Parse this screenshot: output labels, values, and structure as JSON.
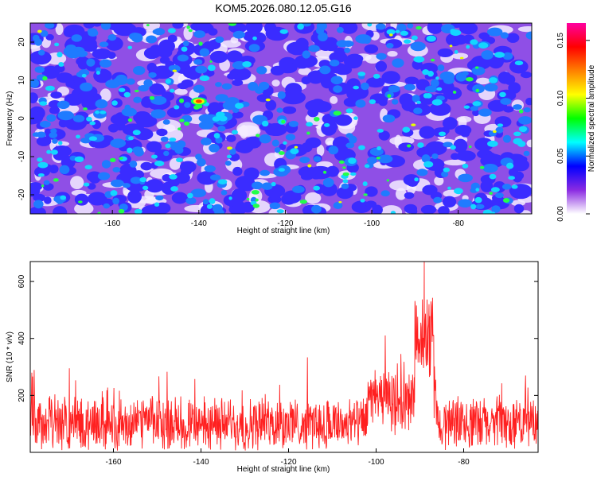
{
  "title": "KOM5.2026.080.12.05.G16",
  "chart_data": [
    {
      "type": "heatmap",
      "xlabel": "Height of straight line (km)",
      "ylabel": "Frequency (Hz)",
      "xlim": [
        -179,
        -63
      ],
      "ylim": [
        -25,
        25
      ],
      "xticks": [
        -160,
        -140,
        -120,
        -100,
        -80
      ],
      "xtick_labels": [
        "-160",
        "-140",
        "-120",
        "-100",
        "-80"
      ],
      "yticks": [
        -20,
        -10,
        0,
        10,
        20
      ],
      "ytick_labels": [
        "-20",
        "-10",
        "0",
        "10",
        "20"
      ],
      "colorbar": {
        "label": "Normalized spectral amplitude",
        "range": [
          0.0,
          0.165
        ],
        "ticks": [
          0.0,
          0.05,
          0.1,
          0.15
        ],
        "tick_labels": [
          "0.00",
          "0.05",
          "0.10",
          "0.15"
        ]
      },
      "peak": {
        "x": -140,
        "y": 4.5,
        "value": 0.16
      },
      "colors": [
        "#ffffff",
        "#8a2be2",
        "#0000ff",
        "#00ffff",
        "#00ff00",
        "#ffff00",
        "#ff8000",
        "#ff0000",
        "#ff00a0"
      ]
    },
    {
      "type": "line",
      "xlabel": "Height of straight line (km)",
      "ylabel": "SNR (10 * v/v)",
      "xlim": [
        -179,
        -63
      ],
      "ylim": [
        0,
        670
      ],
      "xticks": [
        -160,
        -140,
        -120,
        -100,
        -80
      ],
      "xtick_labels": [
        "-160",
        "-140",
        "-120",
        "-100",
        "-80"
      ],
      "yticks": [
        200,
        400,
        600
      ],
      "ytick_labels": [
        "200",
        "400",
        "600"
      ],
      "series": [
        {
          "name": "SNR",
          "color": "#ff2020",
          "baseline": 100,
          "peak": {
            "x": -89,
            "y": 670
          }
        }
      ]
    }
  ]
}
